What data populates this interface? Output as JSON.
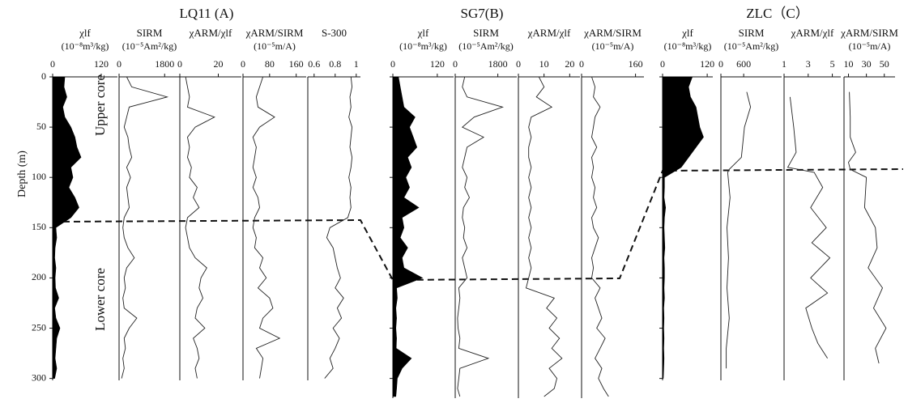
{
  "groups": [
    {
      "title": "LQ11 (A)"
    },
    {
      "title": "SG7(B)"
    },
    {
      "title": "ZLC（C）"
    }
  ],
  "depth_axis": {
    "label": "Depth (m)",
    "ylim": [
      0,
      318
    ],
    "yticks": [
      0,
      50,
      100,
      150,
      200,
      250,
      300
    ]
  },
  "annotations": {
    "upper": "Upper core",
    "lower": "Lower core"
  },
  "chart_data": [
    {
      "type": "area",
      "title": "χlf",
      "unit": "(10⁻⁸m³/kg)",
      "xlim": [
        0,
        160
      ],
      "xticks": [
        0,
        120
      ],
      "depth": [
        0,
        10,
        20,
        30,
        40,
        50,
        60,
        70,
        80,
        90,
        100,
        110,
        120,
        130,
        140,
        150,
        160,
        170,
        180,
        190,
        200,
        210,
        220,
        230,
        240,
        250,
        260,
        270,
        280,
        290,
        300
      ],
      "values": [
        30,
        28,
        35,
        25,
        30,
        45,
        55,
        60,
        70,
        45,
        50,
        40,
        55,
        65,
        45,
        8,
        10,
        6,
        5,
        8,
        6,
        7,
        15,
        5,
        8,
        18,
        10,
        8,
        6,
        10,
        5
      ]
    },
    {
      "type": "line",
      "title": "SIRM",
      "unit": "(10⁻⁵Am²/kg)",
      "xlim": [
        0,
        2400
      ],
      "xticks": [
        0,
        1800
      ],
      "depth": [
        0,
        10,
        20,
        30,
        40,
        50,
        60,
        70,
        80,
        90,
        100,
        110,
        120,
        130,
        140,
        150,
        160,
        170,
        180,
        190,
        200,
        210,
        220,
        230,
        240,
        250,
        260,
        270,
        280,
        290,
        300
      ],
      "values": [
        300,
        500,
        1900,
        400,
        300,
        200,
        350,
        400,
        500,
        300,
        450,
        300,
        350,
        400,
        200,
        150,
        200,
        350,
        600,
        300,
        200,
        250,
        150,
        200,
        700,
        400,
        200,
        250,
        150,
        200,
        100
      ]
    },
    {
      "type": "line",
      "title": "χARM/χlf",
      "xlim": [
        0,
        32
      ],
      "xticks": [
        0,
        20
      ],
      "depth": [
        0,
        10,
        20,
        30,
        40,
        50,
        60,
        70,
        80,
        90,
        100,
        110,
        120,
        130,
        140,
        150,
        160,
        170,
        180,
        190,
        200,
        210,
        220,
        230,
        240,
        250,
        260,
        270,
        280,
        290,
        300
      ],
      "values": [
        3,
        4,
        5,
        4,
        18,
        8,
        4,
        5,
        4,
        6,
        5,
        9,
        7,
        10,
        4,
        3,
        4,
        5,
        8,
        14,
        11,
        10,
        12,
        9,
        8,
        13,
        7,
        9,
        10,
        8,
        9
      ]
    },
    {
      "type": "line",
      "title": "χARM/SIRM",
      "unit": "(10⁻⁵m/A)",
      "xlim": [
        0,
        190
      ],
      "xticks": [
        0,
        80,
        160
      ],
      "depth": [
        0,
        10,
        20,
        30,
        40,
        50,
        60,
        70,
        80,
        90,
        100,
        110,
        120,
        130,
        140,
        150,
        160,
        170,
        180,
        190,
        200,
        210,
        220,
        230,
        240,
        250,
        260,
        270,
        280,
        290,
        300
      ],
      "values": [
        60,
        50,
        40,
        45,
        95,
        50,
        30,
        40,
        35,
        30,
        40,
        30,
        45,
        50,
        35,
        30,
        40,
        35,
        60,
        50,
        70,
        45,
        80,
        90,
        60,
        50,
        110,
        40,
        60,
        55,
        50
      ]
    },
    {
      "type": "line",
      "title": "S-300",
      "xlim": [
        0.54,
        1.04
      ],
      "xticks": [
        0.6,
        0.8,
        1
      ],
      "depth": [
        0,
        10,
        20,
        30,
        40,
        50,
        60,
        70,
        80,
        90,
        100,
        110,
        120,
        130,
        140,
        150,
        160,
        170,
        180,
        190,
        200,
        210,
        220,
        230,
        240,
        250,
        260,
        270,
        280,
        290,
        300
      ],
      "values": [
        0.95,
        0.96,
        0.94,
        0.95,
        0.93,
        0.96,
        0.95,
        0.94,
        0.96,
        0.95,
        0.93,
        0.95,
        0.94,
        0.95,
        0.92,
        0.75,
        0.72,
        0.78,
        0.8,
        0.82,
        0.85,
        0.8,
        0.88,
        0.82,
        0.86,
        0.78,
        0.84,
        0.8,
        0.75,
        0.78,
        0.7
      ]
    },
    {
      "type": "area",
      "title": "χlf",
      "unit": "(10⁻⁸m³/kg)",
      "xlim": [
        0,
        164
      ],
      "xticks": [
        0,
        120
      ],
      "depth": [
        0,
        10,
        20,
        30,
        40,
        50,
        60,
        70,
        80,
        90,
        100,
        110,
        120,
        130,
        140,
        150,
        160,
        170,
        180,
        190,
        200,
        210,
        220,
        230,
        240,
        250,
        260,
        270,
        280,
        290,
        300,
        310,
        318
      ],
      "values": [
        15,
        20,
        25,
        30,
        60,
        45,
        55,
        65,
        40,
        50,
        35,
        45,
        30,
        70,
        25,
        30,
        20,
        40,
        25,
        30,
        80,
        10,
        12,
        8,
        10,
        8,
        10,
        9,
        50,
        25,
        12,
        10,
        8
      ]
    },
    {
      "type": "line",
      "title": "SIRM",
      "unit": "(10⁻⁵Am²/kg)",
      "xlim": [
        0,
        2600
      ],
      "xticks": [
        0,
        1800
      ],
      "depth": [
        0,
        10,
        20,
        30,
        40,
        50,
        60,
        70,
        80,
        90,
        100,
        110,
        120,
        130,
        140,
        150,
        160,
        170,
        180,
        190,
        200,
        210,
        220,
        230,
        240,
        250,
        260,
        270,
        280,
        290,
        300,
        310,
        318
      ],
      "values": [
        400,
        300,
        500,
        2000,
        800,
        300,
        1200,
        500,
        400,
        300,
        500,
        400,
        600,
        350,
        300,
        400,
        350,
        500,
        300,
        400,
        500,
        150,
        200,
        150,
        100,
        120,
        200,
        150,
        1400,
        200,
        150,
        100,
        200
      ]
    },
    {
      "type": "line",
      "title": "χARM/χlf",
      "xlim": [
        0,
        24
      ],
      "xticks": [
        0,
        10,
        20
      ],
      "depth": [
        0,
        10,
        20,
        30,
        40,
        50,
        60,
        70,
        80,
        90,
        100,
        110,
        120,
        130,
        140,
        150,
        160,
        170,
        180,
        190,
        200,
        210,
        220,
        230,
        240,
        250,
        260,
        270,
        280,
        290,
        300,
        310,
        318
      ],
      "values": [
        8,
        10,
        7,
        13,
        5,
        4,
        5,
        4,
        4,
        5,
        4,
        5,
        4,
        5,
        4,
        5,
        4,
        5,
        4,
        5,
        4,
        3,
        14,
        11,
        15,
        12,
        16,
        13,
        17,
        12,
        15,
        14,
        10
      ]
    },
    {
      "type": "line",
      "title": "χARM/SIRM",
      "unit": "(10⁻⁵m/A)",
      "xlim": [
        0,
        185
      ],
      "xticks": [
        0,
        160
      ],
      "depth": [
        0,
        10,
        20,
        30,
        40,
        50,
        60,
        70,
        80,
        90,
        100,
        110,
        120,
        130,
        140,
        150,
        160,
        170,
        180,
        190,
        200,
        210,
        220,
        230,
        240,
        250,
        260,
        270,
        280,
        290,
        300,
        310,
        318
      ],
      "values": [
        30,
        40,
        35,
        55,
        40,
        35,
        30,
        45,
        30,
        35,
        30,
        40,
        35,
        45,
        30,
        35,
        50,
        40,
        30,
        35,
        30,
        55,
        40,
        50,
        60,
        45,
        70,
        55,
        40,
        60,
        50,
        65,
        80
      ]
    },
    {
      "type": "area",
      "title": "χlf",
      "unit": "(10⁻⁸m³/kg)",
      "xlim": [
        0,
        135
      ],
      "xticks": [
        0,
        120
      ],
      "depth": [
        0,
        10,
        20,
        30,
        40,
        50,
        60,
        70,
        80,
        90,
        100,
        110,
        120,
        130,
        140,
        150,
        160,
        170,
        180,
        190,
        200,
        210,
        220,
        230,
        240,
        250,
        260,
        270,
        280,
        290,
        300
      ],
      "values": [
        80,
        70,
        75,
        90,
        95,
        100,
        110,
        90,
        70,
        50,
        5,
        5,
        4,
        8,
        5,
        4,
        5,
        6,
        4,
        5,
        5,
        4,
        5,
        3,
        4,
        3,
        4,
        3,
        4,
        3,
        2
      ]
    },
    {
      "type": "line",
      "title": "SIRM",
      "unit": "(10⁻⁵Am²/kg)",
      "xlim": [
        0,
        1600
      ],
      "xticks": [
        0,
        600
      ],
      "depth": [
        15,
        30,
        50,
        65,
        80,
        92,
        95,
        120,
        150,
        180,
        210,
        240,
        270,
        290
      ],
      "values": [
        680,
        780,
        620,
        580,
        540,
        220,
        180,
        240,
        160,
        200,
        160,
        220,
        140,
        140
      ]
    },
    {
      "type": "line",
      "title": "χARM/χlf",
      "xlim": [
        1,
        5.7
      ],
      "xticks": [
        1,
        3,
        5
      ],
      "depth": [
        20,
        50,
        75,
        90,
        95,
        110,
        130,
        150,
        165,
        180,
        200,
        215,
        230,
        250,
        265,
        280
      ],
      "values": [
        1.5,
        1.8,
        2.0,
        1.3,
        3.5,
        4.2,
        3.2,
        4.5,
        3.3,
        4.8,
        3.2,
        4.6,
        2.8,
        3.3,
        3.8,
        4.6
      ]
    },
    {
      "type": "line",
      "title": "χARM/SIRM",
      "unit": "(10⁻⁵m/A)",
      "xlim": [
        5,
        62
      ],
      "xticks": [
        10,
        30,
        50
      ],
      "depth": [
        15,
        40,
        60,
        75,
        85,
        92,
        100,
        130,
        150,
        170,
        190,
        210,
        230,
        250,
        270,
        285
      ],
      "values": [
        11,
        12,
        12,
        18,
        10,
        12,
        30,
        28,
        40,
        42,
        32,
        48,
        38,
        52,
        40,
        44
      ]
    }
  ]
}
